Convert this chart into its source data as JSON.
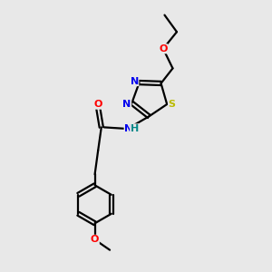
{
  "bg_color": "#e8e8e8",
  "atom_colors": {
    "C": "#000000",
    "N": "#0000ee",
    "O": "#ff0000",
    "S": "#bbbb00",
    "H": "#008888"
  },
  "figsize": [
    3.0,
    3.0
  ],
  "dpi": 100,
  "xlim": [
    0,
    10
  ],
  "ylim": [
    0,
    10
  ],
  "lw": 1.6
}
